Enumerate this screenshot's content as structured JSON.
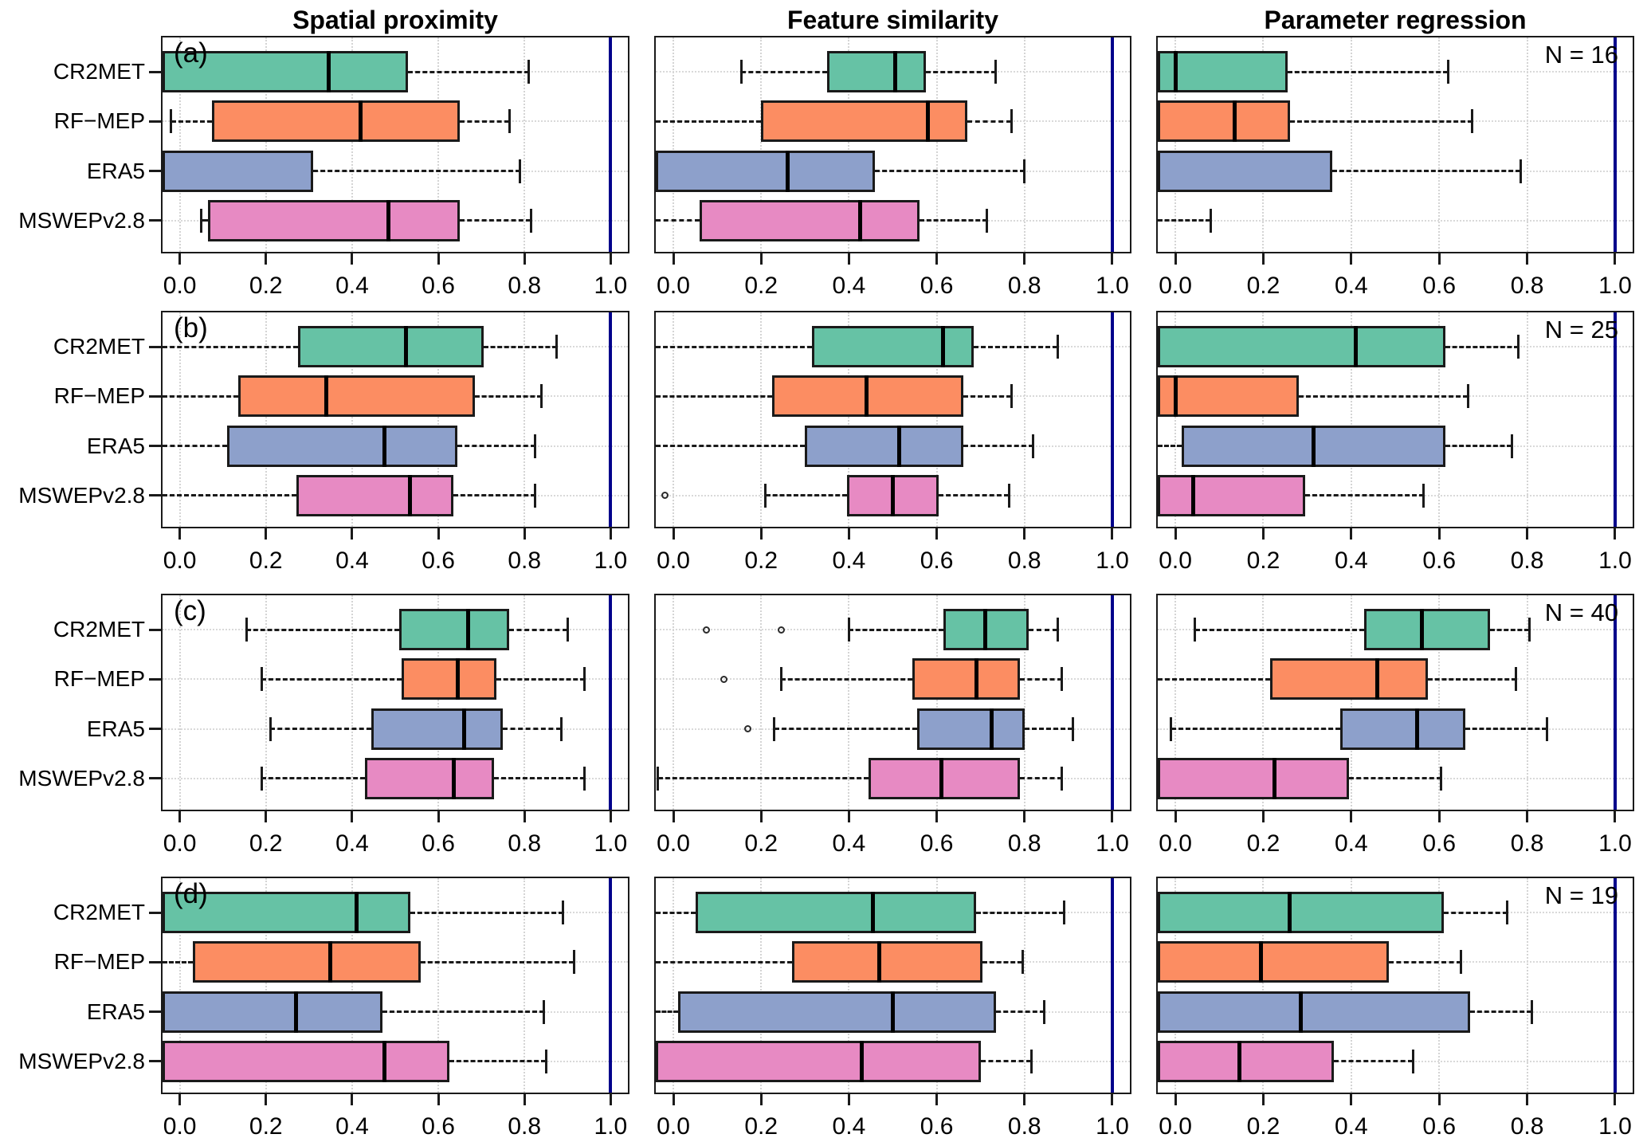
{
  "figure_title": "",
  "column_titles": [
    "Spatial proximity",
    "Feature similarity",
    "Parameter regression"
  ],
  "products": [
    "CR2MET",
    "RF−MEP",
    "ERA5",
    "MSWEPv2.8"
  ],
  "product_colors": [
    "#66C2A5",
    "#FC8D62",
    "#8DA0CB",
    "#E78AC3"
  ],
  "axis": {
    "tick_labels": [
      "0.0",
      "0.2",
      "0.4",
      "0.6",
      "0.8",
      "1.0"
    ],
    "tick_values": [
      0,
      0.2,
      0.4,
      0.6,
      0.8,
      1.0
    ],
    "min": -0.04,
    "max": 1.04,
    "reference_line_value": 1.0,
    "reference_line_color": "#00008B",
    "grid": true
  },
  "chart_data": {
    "type": "boxplot-grid",
    "orientation": "horizontal",
    "columns": [
      "Spatial proximity",
      "Feature similarity",
      "Parameter regression"
    ],
    "categories": [
      "CR2MET",
      "RF−MEP",
      "ERA5",
      "MSWEPv2.8"
    ],
    "xlim": [
      -0.04,
      1.04
    ],
    "note": "lo/q1/med/q3/hi in axis units; -0.05 means clipped at left panel edge",
    "rows": [
      {
        "letter": "(a)",
        "n_label": "N = 16",
        "panels": [
          {
            "boxes": [
              {
                "lo": -0.05,
                "q1": -0.05,
                "med": 0.345,
                "q3": 0.53,
                "hi": 0.81,
                "outliers": []
              },
              {
                "lo": -0.02,
                "q1": 0.075,
                "med": 0.42,
                "q3": 0.65,
                "hi": 0.765,
                "outliers": []
              },
              {
                "lo": -0.05,
                "q1": -0.05,
                "med": -0.05,
                "q3": 0.31,
                "hi": 0.79,
                "outliers": []
              },
              {
                "lo": 0.05,
                "q1": 0.065,
                "med": 0.485,
                "q3": 0.65,
                "hi": 0.815,
                "outliers": []
              }
            ]
          },
          {
            "boxes": [
              {
                "lo": 0.155,
                "q1": 0.35,
                "med": 0.505,
                "q3": 0.575,
                "hi": 0.735,
                "outliers": []
              },
              {
                "lo": -0.05,
                "q1": 0.2,
                "med": 0.58,
                "q3": 0.67,
                "hi": 0.77,
                "outliers": []
              },
              {
                "lo": -0.05,
                "q1": -0.05,
                "med": 0.26,
                "q3": 0.46,
                "hi": 0.8,
                "outliers": []
              },
              {
                "lo": -0.05,
                "q1": 0.06,
                "med": 0.425,
                "q3": 0.56,
                "hi": 0.715,
                "outliers": []
              }
            ]
          },
          {
            "boxes": [
              {
                "lo": -0.05,
                "q1": -0.05,
                "med": 0.0,
                "q3": 0.255,
                "hi": 0.62,
                "outliers": []
              },
              {
                "lo": -0.05,
                "q1": -0.05,
                "med": 0.135,
                "q3": 0.26,
                "hi": 0.675,
                "outliers": []
              },
              {
                "lo": -0.05,
                "q1": -0.05,
                "med": -0.05,
                "q3": 0.357,
                "hi": 0.785,
                "outliers": []
              },
              {
                "lo": -0.05,
                "q1": -0.05,
                "med": -0.05,
                "q3": -0.05,
                "hi": 0.08,
                "outliers": []
              }
            ]
          }
        ]
      },
      {
        "letter": "(b)",
        "n_label": "N = 25",
        "panels": [
          {
            "boxes": [
              {
                "lo": -0.05,
                "q1": 0.275,
                "med": 0.525,
                "q3": 0.705,
                "hi": 0.875,
                "outliers": []
              },
              {
                "lo": -0.05,
                "q1": 0.135,
                "med": 0.34,
                "q3": 0.685,
                "hi": 0.84,
                "outliers": []
              },
              {
                "lo": -0.05,
                "q1": 0.11,
                "med": 0.475,
                "q3": 0.645,
                "hi": 0.825,
                "outliers": []
              },
              {
                "lo": -0.05,
                "q1": 0.27,
                "med": 0.535,
                "q3": 0.635,
                "hi": 0.825,
                "outliers": []
              }
            ]
          },
          {
            "boxes": [
              {
                "lo": -0.05,
                "q1": 0.315,
                "med": 0.615,
                "q3": 0.685,
                "hi": 0.875,
                "outliers": []
              },
              {
                "lo": -0.05,
                "q1": 0.225,
                "med": 0.44,
                "q3": 0.66,
                "hi": 0.77,
                "outliers": []
              },
              {
                "lo": -0.05,
                "q1": 0.3,
                "med": 0.515,
                "q3": 0.66,
                "hi": 0.82,
                "outliers": []
              },
              {
                "lo": 0.21,
                "q1": 0.395,
                "med": 0.5,
                "q3": 0.605,
                "hi": 0.765,
                "outliers": [
                  -0.02
                ]
              }
            ]
          },
          {
            "boxes": [
              {
                "lo": -0.05,
                "q1": -0.05,
                "med": 0.41,
                "q3": 0.615,
                "hi": 0.78,
                "outliers": []
              },
              {
                "lo": -0.05,
                "q1": -0.05,
                "med": 0.0,
                "q3": 0.28,
                "hi": 0.665,
                "outliers": []
              },
              {
                "lo": -0.05,
                "q1": 0.015,
                "med": 0.315,
                "q3": 0.615,
                "hi": 0.765,
                "outliers": []
              },
              {
                "lo": -0.05,
                "q1": -0.05,
                "med": 0.04,
                "q3": 0.295,
                "hi": 0.565,
                "outliers": []
              }
            ]
          }
        ]
      },
      {
        "letter": "(c)",
        "n_label": "N = 40",
        "panels": [
          {
            "boxes": [
              {
                "lo": 0.155,
                "q1": 0.51,
                "med": 0.67,
                "q3": 0.765,
                "hi": 0.9,
                "outliers": []
              },
              {
                "lo": 0.19,
                "q1": 0.515,
                "med": 0.645,
                "q3": 0.735,
                "hi": 0.94,
                "outliers": []
              },
              {
                "lo": 0.21,
                "q1": 0.445,
                "med": 0.66,
                "q3": 0.75,
                "hi": 0.885,
                "outliers": []
              },
              {
                "lo": 0.19,
                "q1": 0.43,
                "med": 0.635,
                "q3": 0.73,
                "hi": 0.94,
                "outliers": []
              }
            ]
          },
          {
            "boxes": [
              {
                "lo": 0.4,
                "q1": 0.615,
                "med": 0.71,
                "q3": 0.81,
                "hi": 0.875,
                "outliers": [
                  0.075,
                  0.245
                ]
              },
              {
                "lo": 0.245,
                "q1": 0.545,
                "med": 0.69,
                "q3": 0.79,
                "hi": 0.885,
                "outliers": [
                  0.115
                ]
              },
              {
                "lo": 0.23,
                "q1": 0.555,
                "med": 0.725,
                "q3": 0.8,
                "hi": 0.91,
                "outliers": [
                  0.17
                ]
              },
              {
                "lo": -0.035,
                "q1": 0.445,
                "med": 0.61,
                "q3": 0.79,
                "hi": 0.885,
                "outliers": []
              }
            ]
          },
          {
            "boxes": [
              {
                "lo": 0.045,
                "q1": 0.43,
                "med": 0.56,
                "q3": 0.715,
                "hi": 0.805,
                "outliers": []
              },
              {
                "lo": -0.05,
                "q1": 0.215,
                "med": 0.46,
                "q3": 0.575,
                "hi": 0.775,
                "outliers": []
              },
              {
                "lo": -0.01,
                "q1": 0.375,
                "med": 0.55,
                "q3": 0.66,
                "hi": 0.845,
                "outliers": []
              },
              {
                "lo": -0.05,
                "q1": -0.05,
                "med": 0.225,
                "q3": 0.395,
                "hi": 0.605,
                "outliers": []
              }
            ]
          }
        ]
      },
      {
        "letter": "(d)",
        "n_label": "N = 19",
        "panels": [
          {
            "boxes": [
              {
                "lo": -0.05,
                "q1": -0.04,
                "med": 0.41,
                "q3": 0.535,
                "hi": 0.89,
                "outliers": []
              },
              {
                "lo": -0.05,
                "q1": 0.03,
                "med": 0.35,
                "q3": 0.56,
                "hi": 0.915,
                "outliers": []
              },
              {
                "lo": -0.05,
                "q1": -0.04,
                "med": 0.27,
                "q3": 0.47,
                "hi": 0.845,
                "outliers": []
              },
              {
                "lo": -0.05,
                "q1": -0.04,
                "med": 0.475,
                "q3": 0.625,
                "hi": 0.85,
                "outliers": []
              }
            ]
          },
          {
            "boxes": [
              {
                "lo": -0.05,
                "q1": 0.05,
                "med": 0.455,
                "q3": 0.69,
                "hi": 0.89,
                "outliers": []
              },
              {
                "lo": -0.05,
                "q1": 0.27,
                "med": 0.47,
                "q3": 0.705,
                "hi": 0.795,
                "outliers": []
              },
              {
                "lo": -0.05,
                "q1": 0.01,
                "med": 0.5,
                "q3": 0.735,
                "hi": 0.845,
                "outliers": []
              },
              {
                "lo": -0.05,
                "q1": -0.04,
                "med": 0.43,
                "q3": 0.7,
                "hi": 0.815,
                "outliers": []
              }
            ]
          },
          {
            "boxes": [
              {
                "lo": -0.05,
                "q1": -0.05,
                "med": 0.26,
                "q3": 0.61,
                "hi": 0.755,
                "outliers": []
              },
              {
                "lo": -0.05,
                "q1": -0.05,
                "med": 0.195,
                "q3": 0.485,
                "hi": 0.65,
                "outliers": []
              },
              {
                "lo": -0.05,
                "q1": -0.05,
                "med": 0.285,
                "q3": 0.67,
                "hi": 0.81,
                "outliers": []
              },
              {
                "lo": -0.05,
                "q1": -0.05,
                "med": 0.145,
                "q3": 0.36,
                "hi": 0.54,
                "outliers": []
              }
            ]
          }
        ]
      }
    ]
  }
}
